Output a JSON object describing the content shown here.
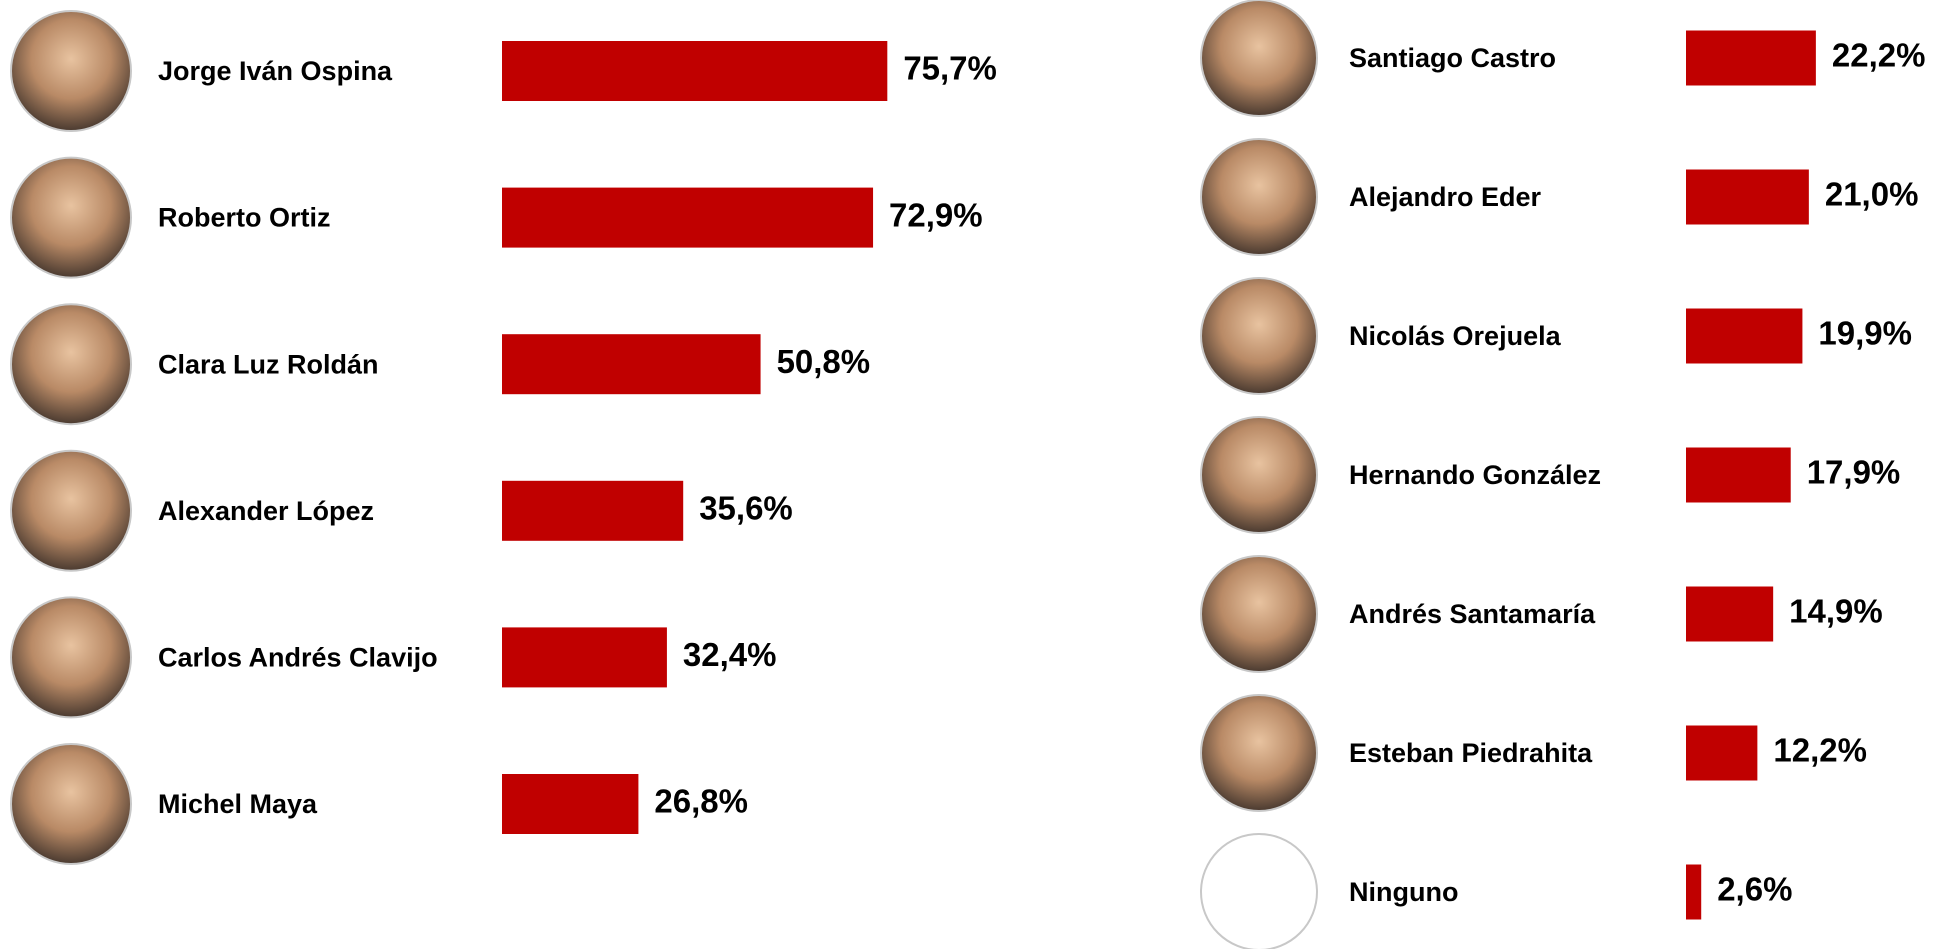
{
  "chart_data": [
    {
      "type": "bar",
      "orientation": "horizontal",
      "color": "#c00000",
      "categories": [
        "Jorge Iván Ospina",
        "Roberto Ortiz",
        "Clara Luz Roldán",
        "Alexander López",
        "Carlos Andrés Clavijo",
        "Michel Maya"
      ],
      "values": [
        75.7,
        72.9,
        50.8,
        35.6,
        32.4,
        26.8
      ],
      "value_labels": [
        "75,7%",
        "72,9%",
        "50,8%",
        "35,6%",
        "32,4%",
        "26,8%"
      ]
    },
    {
      "type": "bar",
      "orientation": "horizontal",
      "color": "#c00000",
      "categories": [
        "Santiago Castro",
        "Alejandro  Eder",
        "Nicolás Orejuela",
        "Hernando González",
        "Andrés Santamaría",
        "Esteban Piedrahita",
        "Ninguno"
      ],
      "values": [
        22.2,
        21.0,
        19.9,
        17.9,
        14.9,
        12.2,
        2.6
      ],
      "value_labels": [
        "22,2%",
        "21,0%",
        "19,9%",
        "17,9%",
        "14,9%",
        "12,2%",
        "2,6%"
      ]
    }
  ]
}
